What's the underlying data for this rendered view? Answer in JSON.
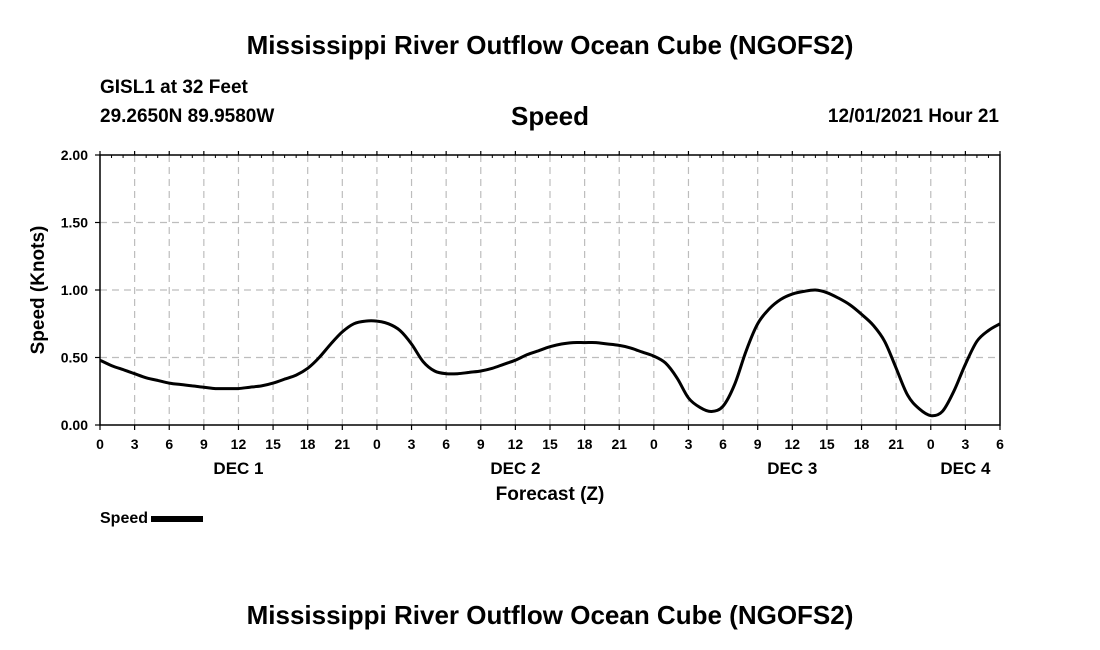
{
  "page": {
    "title_top": "Mississippi River Outflow Ocean Cube (NGOFS2)",
    "title_bottom": "Mississippi River Outflow Ocean Cube (NGOFS2)"
  },
  "header": {
    "station": "GISL1 at 32 Feet",
    "coords": "29.2650N  89.9580W",
    "variable": "Speed",
    "datetime": "12/01/2021 Hour 21"
  },
  "legend": {
    "label": "Speed",
    "color": "#000000"
  },
  "chart_data": {
    "type": "line",
    "title": "Speed",
    "xlabel": "Forecast (Z)",
    "ylabel": "Speed (Knots)",
    "xlim": [
      0,
      78
    ],
    "ylim": [
      0,
      2
    ],
    "grid": true,
    "x_unit": "hours since DEC 1 00Z",
    "x_tick_labels": [
      "0",
      "3",
      "6",
      "9",
      "12",
      "15",
      "18",
      "21",
      "0",
      "3",
      "6",
      "9",
      "12",
      "15",
      "18",
      "21",
      "0",
      "3",
      "6",
      "9",
      "12",
      "15",
      "18",
      "21",
      "0",
      "3",
      "6"
    ],
    "y_ticks": [
      0,
      0.5,
      1,
      1.5,
      2
    ],
    "y_tick_labels": [
      "0.00",
      "0.50",
      "1.00",
      "1.50",
      "2.00"
    ],
    "day_labels": [
      {
        "label": "DEC 1",
        "at_hour": 12
      },
      {
        "label": "DEC 2",
        "at_hour": 36
      },
      {
        "label": "DEC 3",
        "at_hour": 60
      },
      {
        "label": "DEC 4",
        "at_hour": 75
      }
    ],
    "series": [
      {
        "name": "Speed",
        "color": "#000000",
        "x": [
          0,
          1,
          2,
          3,
          4,
          5,
          6,
          7,
          8,
          9,
          10,
          11,
          12,
          13,
          14,
          15,
          16,
          17,
          18,
          19,
          20,
          21,
          22,
          23,
          24,
          25,
          26,
          27,
          28,
          29,
          30,
          31,
          32,
          33,
          34,
          35,
          36,
          37,
          38,
          39,
          40,
          41,
          42,
          43,
          44,
          45,
          46,
          47,
          48,
          49,
          50,
          51,
          52,
          53,
          54,
          55,
          56,
          57,
          58,
          59,
          60,
          61,
          62,
          63,
          64,
          65,
          66,
          67,
          68,
          69,
          70,
          71,
          72,
          73,
          74,
          75,
          76,
          77,
          78
        ],
        "values": [
          0.48,
          0.44,
          0.41,
          0.38,
          0.35,
          0.33,
          0.31,
          0.3,
          0.29,
          0.28,
          0.27,
          0.27,
          0.27,
          0.28,
          0.29,
          0.31,
          0.34,
          0.37,
          0.42,
          0.5,
          0.6,
          0.69,
          0.75,
          0.77,
          0.77,
          0.75,
          0.7,
          0.6,
          0.47,
          0.4,
          0.38,
          0.38,
          0.39,
          0.4,
          0.42,
          0.45,
          0.48,
          0.52,
          0.55,
          0.58,
          0.6,
          0.61,
          0.61,
          0.61,
          0.6,
          0.59,
          0.57,
          0.54,
          0.51,
          0.46,
          0.35,
          0.2,
          0.13,
          0.1,
          0.14,
          0.3,
          0.55,
          0.75,
          0.86,
          0.93,
          0.97,
          0.99,
          1.0,
          0.98,
          0.94,
          0.89,
          0.82,
          0.74,
          0.62,
          0.42,
          0.22,
          0.12,
          0.07,
          0.1,
          0.25,
          0.45,
          0.62,
          0.7,
          0.75
        ]
      }
    ]
  }
}
